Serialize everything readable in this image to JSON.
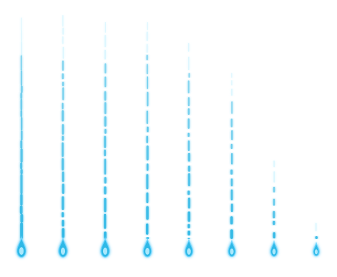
{
  "scene": {
    "description_type": "water-drop sprite sequence",
    "frame_count": 8,
    "colors": {
      "background": "#ffffff",
      "core": "#2fb8e6",
      "highlight": "#bff0ff",
      "glow": "#6fd6ff"
    },
    "frames": [
      {
        "frame": 1,
        "stream_fraction": 0.96,
        "drop_size": 1.0,
        "continuity": 1.0
      },
      {
        "frame": 2,
        "stream_fraction": 0.97,
        "drop_size": 0.95,
        "continuity": 0.7
      },
      {
        "frame": 3,
        "stream_fraction": 0.94,
        "drop_size": 0.95,
        "continuity": 0.6
      },
      {
        "frame": 4,
        "stream_fraction": 0.94,
        "drop_size": 0.9,
        "continuity": 0.55
      },
      {
        "frame": 5,
        "stream_fraction": 0.85,
        "drop_size": 0.85,
        "continuity": 0.45
      },
      {
        "frame": 6,
        "stream_fraction": 0.72,
        "drop_size": 0.8,
        "continuity": 0.35
      },
      {
        "frame": 7,
        "stream_fraction": 0.34,
        "drop_size": 0.75,
        "continuity": 0.25
      },
      {
        "frame": 8,
        "stream_fraction": 0.07,
        "drop_size": 0.65,
        "continuity": 0.1
      }
    ]
  }
}
